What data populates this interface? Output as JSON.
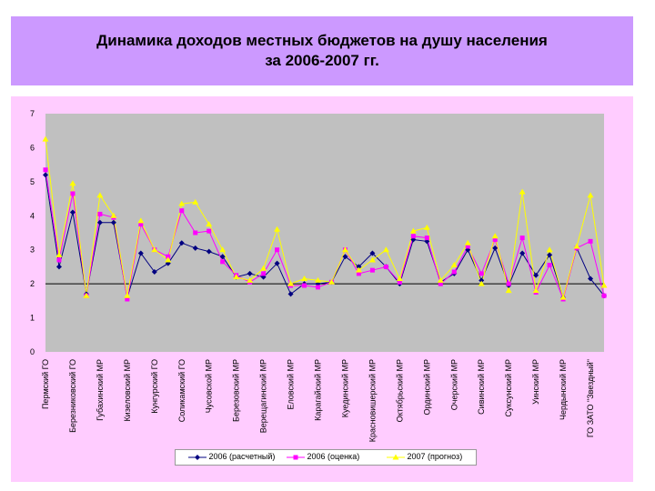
{
  "title": {
    "line1": "Динамика доходов местных бюджетов на душу населения",
    "line2": "за 2006-2007 гг."
  },
  "colors": {
    "title_bg": "#cc99ff",
    "panel_bg": "#ffccff",
    "plot_bg": "#c0c0c0"
  },
  "chart_data": {
    "type": "line",
    "ylim": [
      0,
      7
    ],
    "yticks": [
      "0",
      "1",
      "2",
      "3",
      "4",
      "5",
      "6",
      "7"
    ],
    "reference_line": 2,
    "grid": false,
    "legend_placement": "bottom",
    "categories": [
      "Пермский ГО",
      "",
      "Березниковский ГО",
      "",
      "Губахинский МР",
      "",
      "Кизеловский МР",
      "",
      "Кунгурский ГО",
      "",
      "Соликамский ГО",
      "",
      "Чусовской МР",
      "",
      "Березовский МР",
      "",
      "Верещагинский МР",
      "",
      "Еловский МР",
      "",
      "Карагайский МР",
      "",
      "Куединский МР",
      "",
      "Красновишерский МР",
      "",
      "Октябрьский МР",
      "",
      "Ординский МР",
      "",
      "Очерский МР",
      "",
      "Сивинский МР",
      "",
      "Суксунский МР",
      "",
      "Уинский МР",
      "",
      "Чердынский МР",
      "",
      "ГО ЗАТО \"Звездный\"",
      ""
    ],
    "series": [
      {
        "name": "2006 (расчетный)",
        "color": "#000080",
        "marker": "diamond",
        "values": [
          5.2,
          2.5,
          4.1,
          1.7,
          3.8,
          3.8,
          1.6,
          2.9,
          2.35,
          2.6,
          3.2,
          3.05,
          2.95,
          2.8,
          2.2,
          2.3,
          2.2,
          2.6,
          1.7,
          2.0,
          2.0,
          2.05,
          2.8,
          2.5,
          2.9,
          2.5,
          2.0,
          3.3,
          3.25,
          2.05,
          2.3,
          3.0,
          2.1,
          3.05,
          1.95,
          2.9,
          2.25,
          2.85,
          1.6,
          3.05,
          2.15,
          1.65
        ]
      },
      {
        "name": "2006 (оценка)",
        "color": "#ff00ff",
        "marker": "square",
        "values": [
          5.35,
          2.7,
          4.65,
          1.65,
          4.05,
          3.95,
          1.55,
          3.75,
          3.0,
          2.8,
          4.15,
          3.5,
          3.55,
          2.65,
          2.25,
          2.05,
          2.3,
          3.0,
          1.95,
          1.95,
          1.9,
          2.05,
          3.0,
          2.3,
          2.4,
          2.5,
          2.05,
          3.4,
          3.35,
          2.0,
          2.35,
          3.1,
          2.3,
          3.3,
          2.0,
          3.35,
          1.75,
          2.55,
          1.55,
          3.05,
          3.25,
          1.65
        ]
      },
      {
        "name": "2007 (прогноз)",
        "color": "#ffff00",
        "marker": "triangle",
        "values": [
          6.25,
          2.85,
          4.95,
          1.65,
          4.6,
          4.0,
          1.65,
          3.85,
          3.0,
          2.7,
          4.35,
          4.4,
          3.75,
          3.0,
          2.2,
          2.1,
          2.45,
          3.6,
          2.0,
          2.15,
          2.1,
          2.05,
          3.0,
          2.4,
          2.7,
          3.0,
          2.15,
          3.55,
          3.65,
          2.1,
          2.55,
          3.2,
          2.0,
          3.4,
          1.8,
          4.7,
          1.8,
          3.0,
          1.6,
          3.1,
          4.6,
          1.95
        ]
      }
    ]
  }
}
